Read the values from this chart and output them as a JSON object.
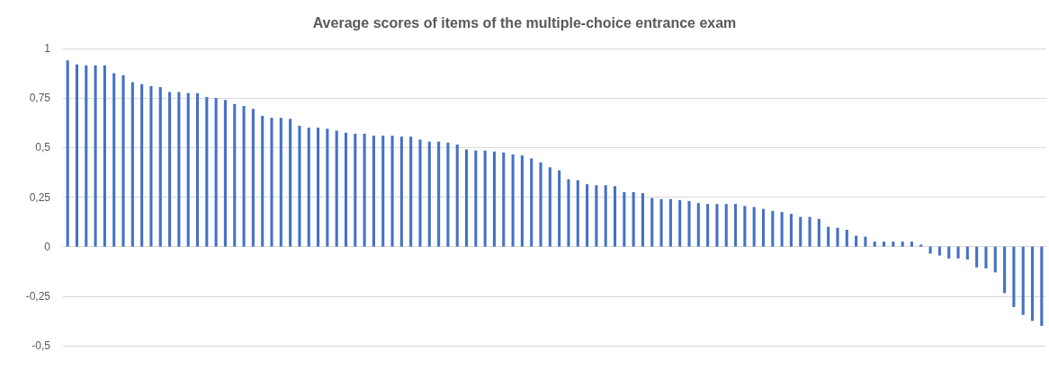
{
  "chart_data": {
    "type": "bar",
    "title": "Average scores of items of the multiple-choice entrance exam",
    "categories": [
      null,
      null,
      null,
      null,
      null,
      null,
      null,
      null,
      null,
      null,
      null,
      null,
      null,
      null,
      null,
      null,
      null,
      null,
      null,
      null,
      null,
      null,
      null,
      null,
      null,
      null,
      null,
      null,
      null,
      null,
      null,
      null,
      null,
      null,
      null,
      null,
      null,
      null,
      null,
      null,
      null,
      null,
      null,
      null,
      null,
      null,
      null,
      null,
      null,
      null,
      null,
      null,
      null,
      null,
      null,
      null,
      null,
      null,
      null,
      null,
      null,
      null,
      null,
      null,
      null,
      null,
      null,
      null,
      null,
      null,
      null,
      null,
      null,
      null,
      null,
      null,
      null,
      null,
      null,
      null,
      null,
      null,
      null,
      null,
      null,
      null,
      null,
      null,
      null,
      null,
      null,
      null,
      null,
      null,
      null,
      null,
      null,
      null,
      null,
      null,
      null,
      null,
      null,
      null,
      null,
      null
    ],
    "values": [
      0.94,
      0.92,
      0.915,
      0.915,
      0.915,
      0.875,
      0.865,
      0.83,
      0.82,
      0.81,
      0.805,
      0.78,
      0.78,
      0.775,
      0.775,
      0.755,
      0.75,
      0.74,
      0.72,
      0.71,
      0.695,
      0.66,
      0.65,
      0.65,
      0.645,
      0.61,
      0.6,
      0.6,
      0.595,
      0.585,
      0.575,
      0.57,
      0.57,
      0.56,
      0.56,
      0.56,
      0.555,
      0.555,
      0.54,
      0.53,
      0.53,
      0.525,
      0.515,
      0.49,
      0.485,
      0.485,
      0.48,
      0.475,
      0.465,
      0.46,
      0.445,
      0.425,
      0.4,
      0.385,
      0.34,
      0.335,
      0.315,
      0.31,
      0.31,
      0.305,
      0.275,
      0.275,
      0.27,
      0.245,
      0.24,
      0.24,
      0.235,
      0.23,
      0.22,
      0.215,
      0.215,
      0.215,
      0.215,
      0.205,
      0.2,
      0.19,
      0.18,
      0.175,
      0.165,
      0.15,
      0.15,
      0.14,
      0.1,
      0.095,
      0.085,
      0.055,
      0.05,
      0.025,
      0.025,
      0.025,
      0.025,
      0.025,
      0.01,
      -0.035,
      -0.045,
      -0.06,
      -0.06,
      -0.065,
      -0.105,
      -0.11,
      -0.13,
      -0.235,
      -0.305,
      -0.345,
      -0.375,
      -0.4
    ],
    "color": "#4472c4",
    "ylim": [
      -0.5,
      1
    ],
    "yticks": [
      {
        "value": -0.5,
        "label": "-0,5"
      },
      {
        "value": -0.25,
        "label": "-0,25"
      },
      0,
      {
        "value": 0.25,
        "label": "0,25"
      },
      {
        "value": 0.5,
        "label": "0,5"
      },
      {
        "value": 0.75,
        "label": "0,75"
      },
      1
    ],
    "grid": "y",
    "tick_labels": "y"
  }
}
